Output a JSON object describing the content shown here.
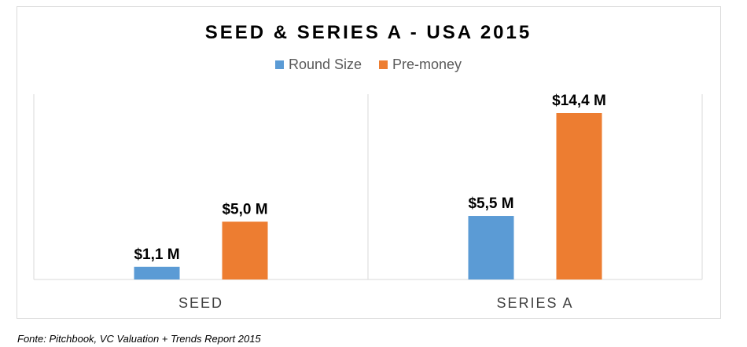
{
  "chart_data": {
    "type": "bar",
    "title": "SEED & SERIES A - USA 2015",
    "categories": [
      "SEED",
      "SERIES A"
    ],
    "series": [
      {
        "name": "Round Size",
        "color": "#5b9bd5",
        "values": [
          1.1,
          5.5
        ],
        "labels": [
          "$1,1 M",
          "$5,5 M"
        ]
      },
      {
        "name": "Pre-money",
        "color": "#ed7d31",
        "values": [
          5.0,
          14.4
        ],
        "labels": [
          "$5,0 M",
          "$14,4 M"
        ]
      }
    ],
    "ylim": [
      0,
      16
    ],
    "grid": false,
    "legend_position": "top"
  },
  "source_note": "Fonte: Pitchbook, VC Valuation + Trends Report 2015"
}
